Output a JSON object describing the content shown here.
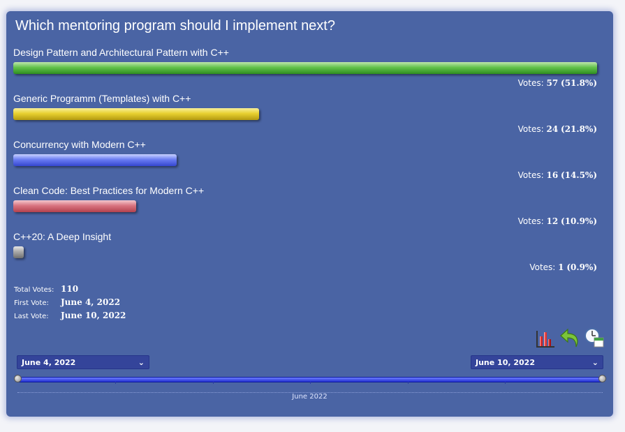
{
  "poll": {
    "title": "Which mentoring program should I implement next?",
    "options": [
      {
        "label": "Design Pattern and Architectural Pattern with C++",
        "votes": "57",
        "percent": "(51.8%)",
        "color": "#5cbf44",
        "share": 0.518
      },
      {
        "label": "Generic Programm (Templates) with C++",
        "votes": "24",
        "percent": "(21.8%)",
        "color": "#e6cc2e",
        "share": 0.218
      },
      {
        "label": "Concurrency with Modern C++",
        "votes": "16",
        "percent": "(14.5%)",
        "color": "#6577f0",
        "share": 0.145
      },
      {
        "label": "Clean Code: Best Practices for Modern C++",
        "votes": "12",
        "percent": "(10.9%)",
        "color": "#d6707c",
        "share": 0.109
      },
      {
        "label": "C++20: A Deep Insight",
        "votes": "1",
        "percent": "(0.9%)",
        "color": "#a8a8a8",
        "share": 0.009
      }
    ],
    "votes_prefix": "Votes:"
  },
  "stats": {
    "total_label": "Total Votes:",
    "total_value": "110",
    "first_label": "First Vote:",
    "first_value": "June 4, 2022",
    "last_label": "Last Vote:",
    "last_value": "June 10, 2022"
  },
  "toolbar": {
    "icons": [
      "bar-chart-icon",
      "undo-arrow-icon",
      "clock-calendar-icon"
    ]
  },
  "range": {
    "start_select": "June 4, 2022",
    "end_select": "June 10, 2022",
    "chevron": "⌄",
    "axis_month": "June 2022"
  },
  "colors": {
    "panel_bg": "#4a64a4",
    "select_bg": "#34449a",
    "slider_track": "#2f3ee0"
  }
}
